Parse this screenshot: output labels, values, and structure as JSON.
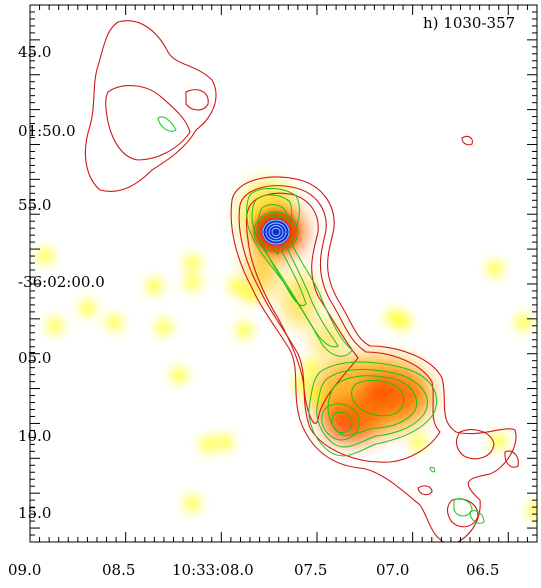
{
  "chart_data": {
    "type": "scatter",
    "title": "h) 1030-357",
    "xlabel": "",
    "ylabel": "",
    "x_ticks": [
      "09.0",
      "08.5",
      "10:33:08.0",
      "07.5",
      "07.0",
      "06.5"
    ],
    "y_ticks": [
      "45.0",
      "01:50.0",
      "55.0",
      "-36:02:00.0",
      "05.0",
      "10.0",
      "15.0"
    ],
    "x_range_s": [
      9.0,
      6.35
    ],
    "y_range_arcsec_from_01_40": [
      40.0,
      117.0
    ],
    "grid": false,
    "legend": "none",
    "colors": {
      "radio_contour": "#d01818",
      "xray_contour": "#19c219",
      "core_contour": "#1a2bd6",
      "xray_low": "#ffff00",
      "xray_mid": "#ff9a00",
      "xray_high": "#ff2a00"
    },
    "sources": [
      {
        "ra": 8.7,
        "dec": 83.5
      },
      {
        "ra": 8.87,
        "dec": 86.0
      },
      {
        "ra": 8.22,
        "dec": 93.1
      },
      {
        "ra": 8.07,
        "dec": 103.0
      },
      {
        "ra": 7.98,
        "dec": 102.7
      },
      {
        "ra": 7.88,
        "dec": 86.6
      },
      {
        "ra": 7.58,
        "dec": 94.4
      },
      {
        "ra": 7.1,
        "dec": 84.8
      },
      {
        "ra": 6.55,
        "dec": 102.6
      },
      {
        "ra": 6.42,
        "dec": 85.5
      },
      {
        "ra": 8.56,
        "dec": 85.5
      },
      {
        "ra": 8.3,
        "dec": 86.2
      },
      {
        "ra": 8.15,
        "dec": 111.5
      },
      {
        "ra": 7.53,
        "dec": 92.0
      },
      {
        "ra": 7.5,
        "dec": 96.0
      },
      {
        "ra": 8.35,
        "dec": 80.3
      },
      {
        "ra": 7.85,
        "dec": 81.5
      },
      {
        "ra": 8.92,
        "dec": 76.0
      },
      {
        "ra": 8.15,
        "dec": 77.0
      },
      {
        "ra": 6.36,
        "dec": 112.5
      },
      {
        "ra": 7.92,
        "dec": 80.3
      },
      {
        "ra": 8.15,
        "dec": 79.8
      },
      {
        "ra": 6.57,
        "dec": 77.8
      },
      {
        "ra": 7.05,
        "dec": 85.4
      },
      {
        "ra": 6.97,
        "dec": 102.7
      }
    ]
  }
}
